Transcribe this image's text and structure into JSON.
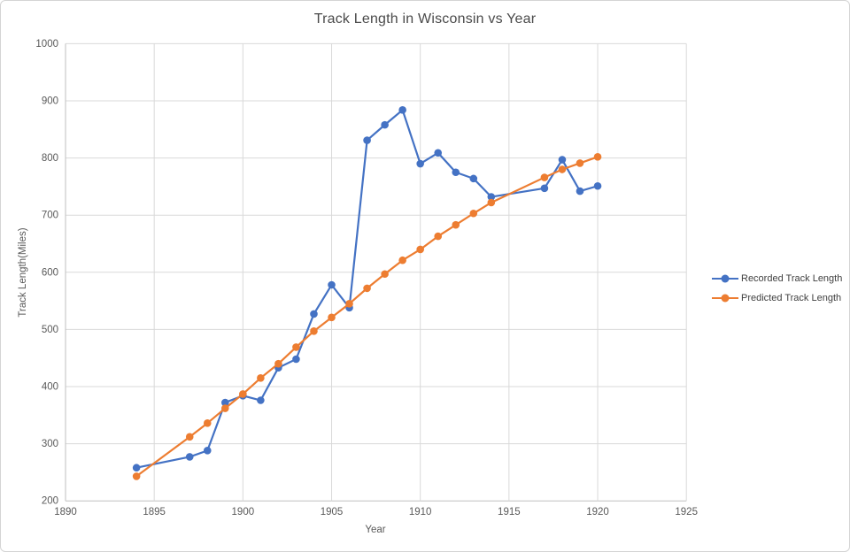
{
  "chart_data": {
    "type": "line",
    "title": "Track Length in Wisconsin vs Year",
    "xlabel": "Year",
    "ylabel": "Track Length(Miles)",
    "x": [
      1894,
      1897,
      1898,
      1899,
      1900,
      1901,
      1902,
      1903,
      1904,
      1905,
      1906,
      1907,
      1908,
      1909,
      1910,
      1911,
      1912,
      1913,
      1914,
      1917,
      1918,
      1919,
      1920
    ],
    "series": [
      {
        "name": "Recorded Track Length",
        "color": "#4472C4",
        "values": [
          258,
          277,
          288,
          372,
          384,
          376,
          433,
          448,
          527,
          578,
          538,
          831,
          858,
          884,
          790,
          809,
          775,
          764,
          732,
          747,
          797,
          742,
          751
        ]
      },
      {
        "name": "Predicted Track Length",
        "color": "#ED7D31",
        "values": [
          243,
          312,
          336,
          362,
          387,
          415,
          440,
          469,
          497,
          521,
          545,
          572,
          597,
          621,
          640,
          663,
          683,
          703,
          722,
          766,
          780,
          791,
          802
        ]
      }
    ],
    "xlim": [
      1890,
      1925
    ],
    "ylim": [
      200,
      1000
    ],
    "x_ticks": [
      1890,
      1895,
      1900,
      1905,
      1910,
      1915,
      1920,
      1925
    ],
    "y_ticks": [
      200,
      300,
      400,
      500,
      600,
      700,
      800,
      900,
      1000
    ],
    "grid": true,
    "legend_position": "right",
    "marker": "circle",
    "colors": {
      "gridline": "#D9D9D9",
      "axis_line": "#BFBFBF",
      "tick_text": "#595959",
      "title_text": "#4a4a4a",
      "legend_text": "#404040",
      "background": "#FFFFFF"
    }
  }
}
